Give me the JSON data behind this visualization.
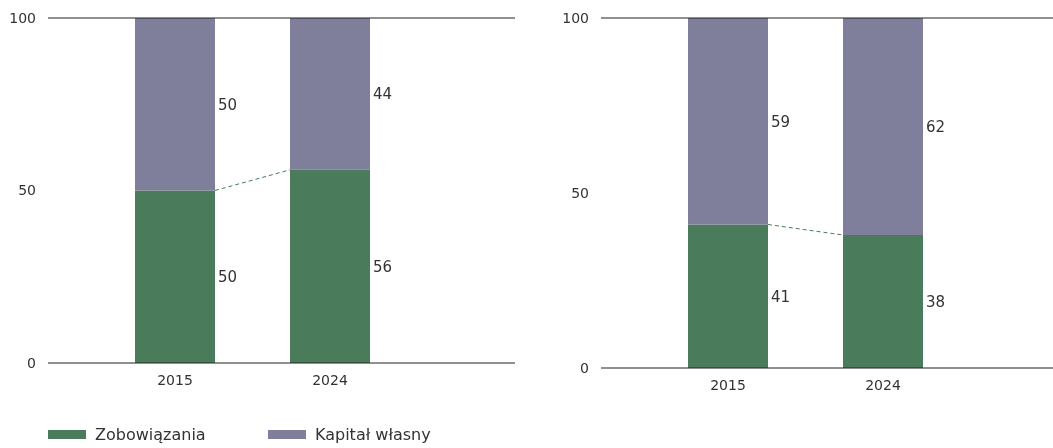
{
  "chart_data": [
    {
      "type": "bar",
      "stacked": true,
      "categories": [
        "2015",
        "2024"
      ],
      "ylim": [
        0,
        100
      ],
      "yticks": [
        0,
        50,
        100
      ],
      "data_labels": true,
      "legend": "bottom",
      "series": [
        {
          "name": "Zobowiązania",
          "color": "#4a7c5b",
          "values": [
            50,
            56
          ]
        },
        {
          "name": "Kapitał własny",
          "color": "#807f9b",
          "values": [
            50,
            44
          ]
        }
      ]
    },
    {
      "type": "bar",
      "stacked": true,
      "categories": [
        "2015",
        "2024"
      ],
      "ylim": [
        0,
        100
      ],
      "yticks": [
        0,
        50,
        100
      ],
      "data_labels": true,
      "series": [
        {
          "color": "#4a7c5b",
          "values": [
            41,
            38
          ]
        },
        {
          "color": "#807f9b",
          "values": [
            59,
            62
          ]
        }
      ]
    }
  ]
}
